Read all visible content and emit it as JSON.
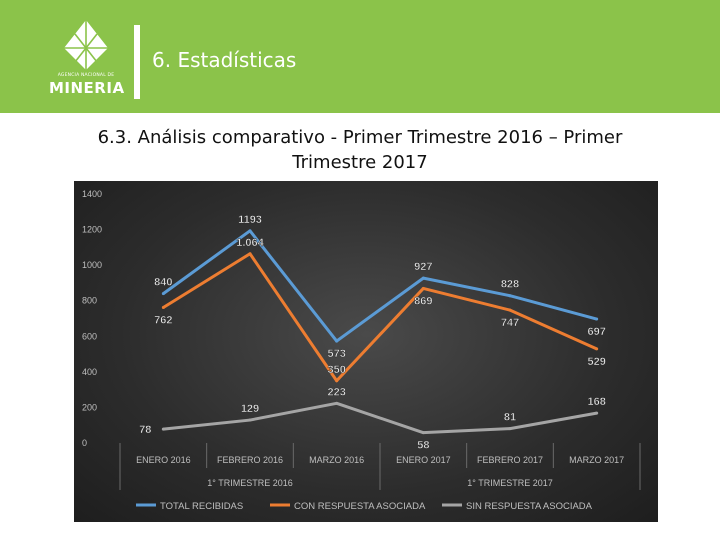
{
  "header": {
    "agency_text": "AGENCIA NACIONAL DE",
    "logo_word": "MINERIA",
    "section_title": "6. Estadísticas",
    "brand_color": "#8bc34a"
  },
  "slide": {
    "title_line1": "6.3. Análisis comparativo  - Primer Trimestre 2016 – Primer",
    "title_line2": "Trimestre 2017"
  },
  "chart_data": {
    "type": "line",
    "categories": [
      "ENERO 2016",
      "FEBRERO 2016",
      "MARZO 2016",
      "ENERO 2017",
      "FEBRERO 2017",
      "MARZO 2017"
    ],
    "groups": [
      {
        "label": "1° TRIMESTRE 2016",
        "start": 0,
        "end": 2
      },
      {
        "label": "1° TRIMESTRE 2017",
        "start": 3,
        "end": 5
      }
    ],
    "ylim": [
      0,
      1400
    ],
    "yticks": [
      0,
      200,
      400,
      600,
      800,
      1000,
      1200,
      1400
    ],
    "grid": false,
    "legend_position": "bottom",
    "series": [
      {
        "name": "TOTAL RECIBIDAS",
        "color": "#5b9bd5",
        "values": [
          840,
          1193,
          573,
          927,
          828,
          697
        ],
        "labels": [
          "840",
          "1193",
          "573",
          "927",
          "828",
          "697"
        ],
        "label_side": [
          "above",
          "above",
          "below",
          "above",
          "above",
          "below"
        ]
      },
      {
        "name": "CON RESPUESTA ASOCIADA",
        "color": "#ed7d31",
        "values": [
          762,
          1064,
          350,
          869,
          747,
          529
        ],
        "labels": [
          "762",
          "1.064",
          "350",
          "869",
          "747",
          "529"
        ],
        "label_side": [
          "below",
          "above",
          "above",
          "below",
          "below",
          "below"
        ]
      },
      {
        "name": "SIN RESPUESTA ASOCIADA",
        "color": "#a5a5a5",
        "values": [
          78,
          129,
          223,
          58,
          81,
          168
        ],
        "labels": [
          "78",
          "129",
          "223",
          "58",
          "81",
          "168"
        ],
        "label_side": [
          "left",
          "above",
          "above",
          "below",
          "above",
          "above"
        ]
      }
    ]
  }
}
